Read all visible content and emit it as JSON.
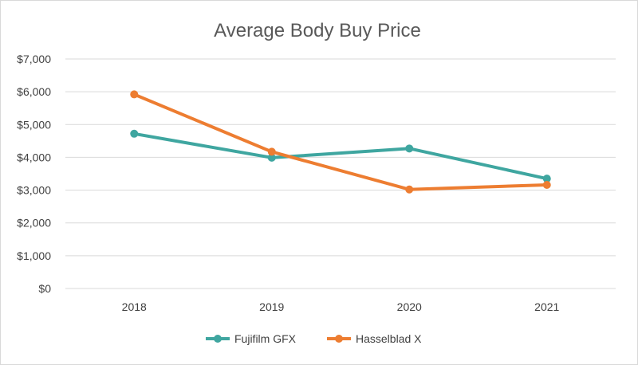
{
  "chart_data": {
    "type": "line",
    "title": "Average Body Buy Price",
    "xlabel": "",
    "ylabel": "",
    "categories": [
      "2018",
      "2019",
      "2020",
      "2021"
    ],
    "ylim": [
      0,
      7000
    ],
    "yticks": [
      0,
      1000,
      2000,
      3000,
      4000,
      5000,
      6000,
      7000
    ],
    "ytick_labels": [
      "$0",
      "$1,000",
      "$2,000",
      "$3,000",
      "$4,000",
      "$5,000",
      "$6,000",
      "$7,000"
    ],
    "grid": true,
    "legend_position": "bottom",
    "series": [
      {
        "name": "Fujifilm GFX",
        "color": "#3fa6a0",
        "values": [
          4720,
          3990,
          4270,
          3350
        ]
      },
      {
        "name": "Hasselblad X",
        "color": "#ed7d31",
        "values": [
          5920,
          4170,
          3020,
          3160
        ]
      }
    ]
  }
}
